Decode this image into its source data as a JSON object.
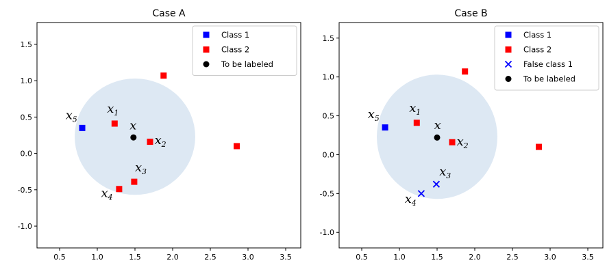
{
  "chart_data": [
    {
      "type": "scatter",
      "title": "Case A",
      "xlim": [
        0.2,
        3.7
      ],
      "ylim": [
        -1.3,
        1.8
      ],
      "xticks": [
        "0.5",
        "1.0",
        "1.5",
        "2.0",
        "2.5",
        "3.0",
        "3.5"
      ],
      "yticks": [
        "-1.0",
        "-0.5",
        "0.0",
        "0.5",
        "1.0",
        "1.5"
      ],
      "grid": false,
      "legend_position": "top-right",
      "neighborhood": {
        "center": [
          1.5,
          0.23
        ],
        "radius": 0.8,
        "color": "#dde8f3"
      },
      "series": [
        {
          "name": "Class 1",
          "marker": "square",
          "color": "#0000ff",
          "points": [
            [
              0.8,
              0.35
            ]
          ]
        },
        {
          "name": "Class 2",
          "marker": "square",
          "color": "#ff0000",
          "points": [
            [
              1.23,
              0.41
            ],
            [
              1.7,
              0.16
            ],
            [
              1.49,
              -0.39
            ],
            [
              1.29,
              -0.49
            ],
            [
              1.88,
              1.07
            ],
            [
              2.85,
              0.1
            ]
          ]
        },
        {
          "name": "To be labeled",
          "marker": "circle",
          "color": "#000000",
          "points": [
            [
              1.48,
              0.22
            ]
          ]
        }
      ],
      "annotations": [
        {
          "text": "x",
          "sub": "5",
          "x": 0.58,
          "y": 0.47
        },
        {
          "text": "x",
          "sub": "1",
          "x": 1.13,
          "y": 0.56
        },
        {
          "text": "x",
          "sub": "",
          "x": 1.43,
          "y": 0.33
        },
        {
          "text": "x",
          "sub": "2",
          "x": 1.76,
          "y": 0.13
        },
        {
          "text": "x",
          "sub": "3",
          "x": 1.5,
          "y": -0.25
        },
        {
          "text": "x",
          "sub": "4",
          "x": 1.05,
          "y": -0.6
        }
      ]
    },
    {
      "type": "scatter",
      "title": "Case B",
      "xlim": [
        0.2,
        3.7
      ],
      "ylim": [
        -1.2,
        1.7
      ],
      "xticks": [
        "0.5",
        "1.0",
        "1.5",
        "2.0",
        "2.5",
        "3.0",
        "3.5"
      ],
      "yticks": [
        "-1.0",
        "-0.5",
        "0.0",
        "0.5",
        "1.0",
        "1.5"
      ],
      "grid": false,
      "legend_position": "top-right",
      "neighborhood": {
        "center": [
          1.5,
          0.23
        ],
        "radius": 0.8,
        "color": "#dde8f3"
      },
      "series": [
        {
          "name": "Class 1",
          "marker": "square",
          "color": "#0000ff",
          "points": [
            [
              0.81,
              0.35
            ]
          ]
        },
        {
          "name": "Class 2",
          "marker": "square",
          "color": "#ff0000",
          "points": [
            [
              1.23,
              0.41
            ],
            [
              1.7,
              0.16
            ],
            [
              1.87,
              1.07
            ],
            [
              2.85,
              0.1
            ]
          ]
        },
        {
          "name": "False class 1",
          "marker": "x",
          "color": "#0000ff",
          "points": [
            [
              1.49,
              -0.38
            ],
            [
              1.29,
              -0.5
            ]
          ]
        },
        {
          "name": "To be labeled",
          "marker": "circle",
          "color": "#000000",
          "points": [
            [
              1.5,
              0.22
            ]
          ]
        }
      ],
      "annotations": [
        {
          "text": "x",
          "sub": "5",
          "x": 0.58,
          "y": 0.47
        },
        {
          "text": "x",
          "sub": "1",
          "x": 1.13,
          "y": 0.55
        },
        {
          "text": "x",
          "sub": "",
          "x": 1.46,
          "y": 0.33
        },
        {
          "text": "x",
          "sub": "2",
          "x": 1.76,
          "y": 0.12
        },
        {
          "text": "x",
          "sub": "3",
          "x": 1.53,
          "y": -0.27
        },
        {
          "text": "x",
          "sub": "4",
          "x": 1.07,
          "y": -0.62
        }
      ]
    }
  ]
}
